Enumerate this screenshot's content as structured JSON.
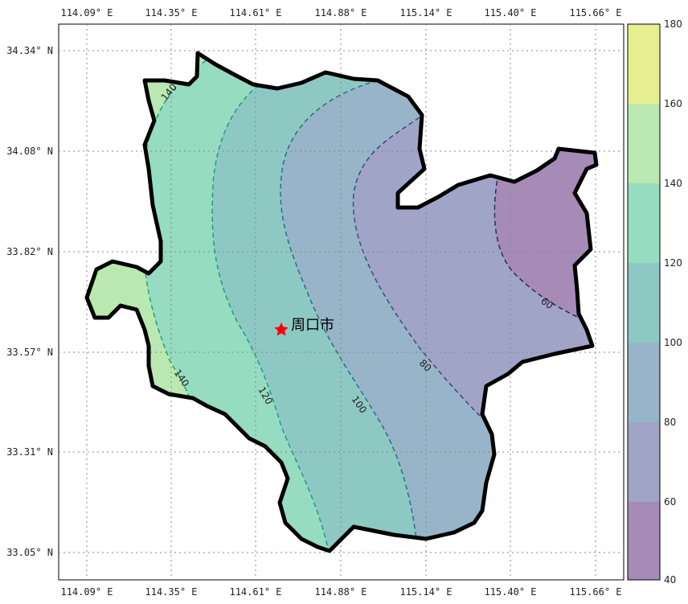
{
  "map": {
    "lon_ticks": [
      "114.09° E",
      "114.35° E",
      "114.61° E",
      "114.88° E",
      "115.14° E",
      "115.40° E",
      "115.66° E"
    ],
    "lat_ticks": [
      "34.34° N",
      "34.08° N",
      "33.82° N",
      "33.57° N",
      "33.31° N",
      "33.05° N"
    ],
    "city": {
      "name": "周口市",
      "marker": "star",
      "color": "#ff0000"
    },
    "contour_labels": [
      "140",
      "140",
      "120",
      "100",
      "80",
      "60"
    ],
    "boundary_color": "#000000",
    "grid": "dotted"
  },
  "colorbar": {
    "ticks": [
      "40",
      "60",
      "80",
      "100",
      "120",
      "140",
      "160",
      "180"
    ],
    "colors": [
      "#a58bb6",
      "#a0a4c6",
      "#98b4c8",
      "#8ec8c3",
      "#96dcc0",
      "#b9e8b0",
      "#e6ef8f"
    ]
  }
}
